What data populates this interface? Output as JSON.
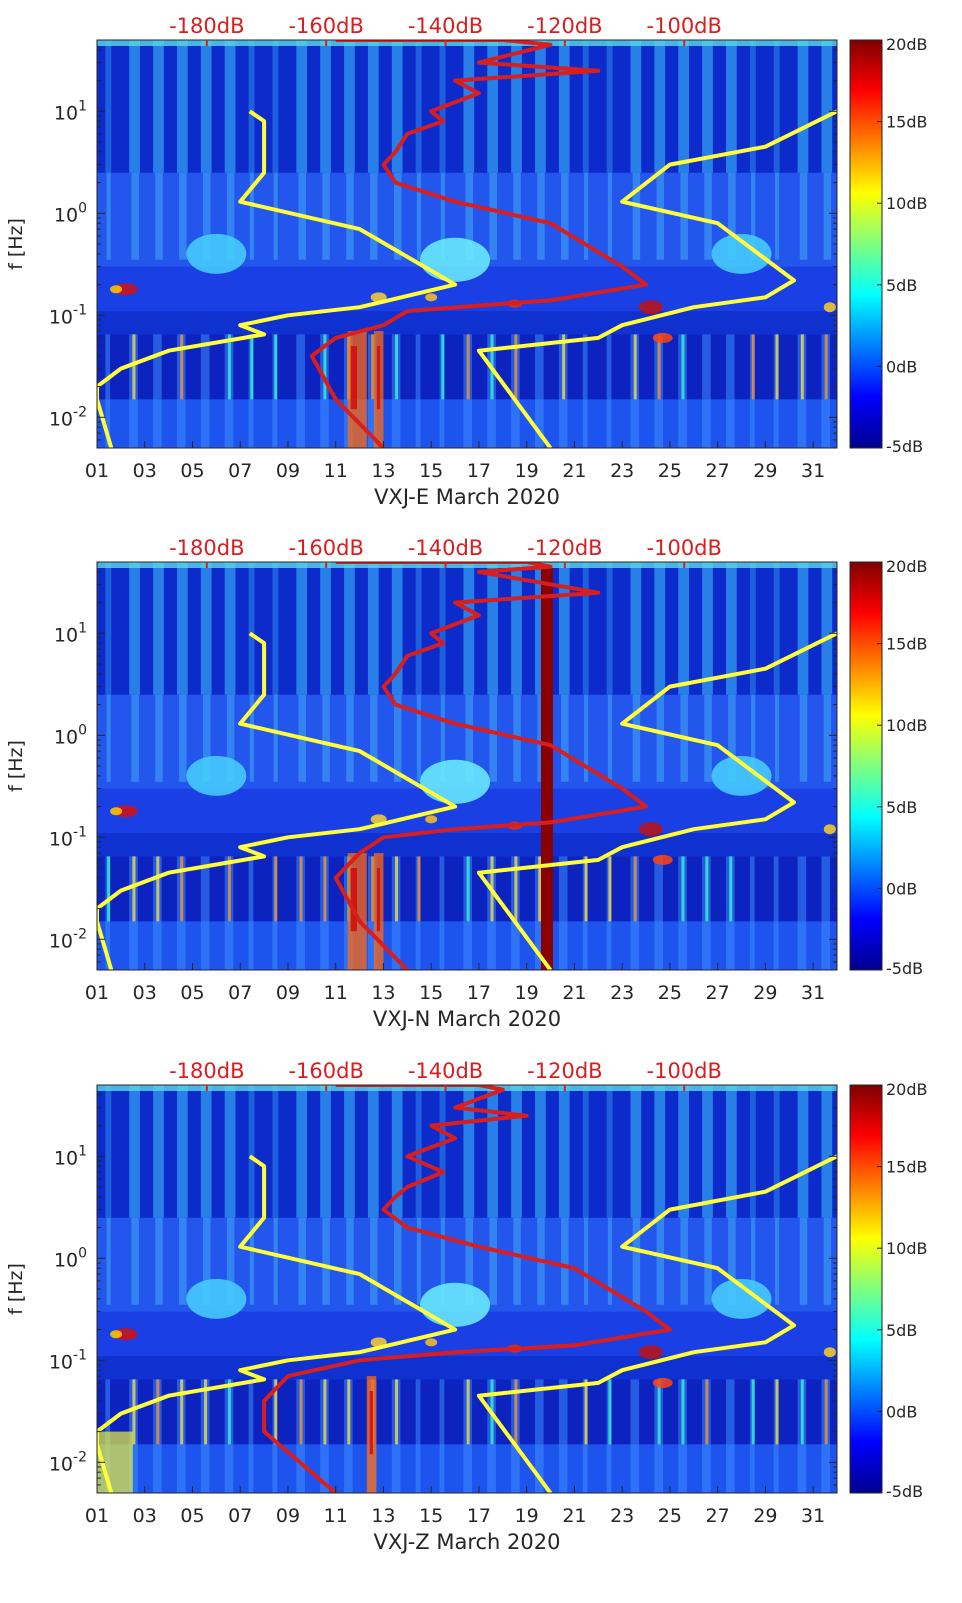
{
  "chart_data": [
    {
      "type": "heatmap",
      "xlabel": "VXJ-E March 2020",
      "ylabel": "f [Hz]",
      "x_ticks": [
        "01",
        "03",
        "05",
        "07",
        "09",
        "11",
        "13",
        "15",
        "17",
        "19",
        "21",
        "23",
        "25",
        "27",
        "29",
        "31"
      ],
      "y_ticks": [
        {
          "v": 0.01,
          "b": "10",
          "e": "-2"
        },
        {
          "v": 0.1,
          "b": "10",
          "e": "-1"
        },
        {
          "v": 1,
          "b": "10",
          "e": "0"
        },
        {
          "v": 10,
          "b": "10",
          "e": "1"
        }
      ],
      "y_scale": "log",
      "ylim": [
        0.005,
        50
      ],
      "xlim": [
        1,
        32
      ],
      "top_axis_ticks": [
        "-180dB",
        "-160dB",
        "-140dB",
        "-120dB",
        "-100dB"
      ],
      "colorbar": {
        "ticks": [
          "20dB",
          "15dB",
          "10dB",
          "5dB",
          "0dB",
          "-5dB"
        ],
        "range": [
          -5,
          20
        ],
        "colormap": "jet"
      },
      "series": [
        {
          "color": "#ffff3a",
          "points": [
            [
              7.4,
              10
            ],
            [
              8,
              8
            ],
            [
              8,
              2.5
            ],
            [
              7,
              1.3
            ],
            [
              12,
              0.7
            ],
            [
              16,
              0.2
            ],
            [
              12,
              0.12
            ],
            [
              9,
              0.1
            ],
            [
              7,
              0.08
            ],
            [
              8,
              0.065
            ],
            [
              4,
              0.045
            ],
            [
              2,
              0.03
            ],
            [
              1,
              0.02
            ],
            [
              1,
              0.015
            ],
            [
              1.6,
              0.005
            ]
          ]
        },
        {
          "color": "#ffff3a",
          "points": [
            [
              32,
              10
            ],
            [
              29,
              4.5
            ],
            [
              25,
              3
            ],
            [
              23,
              1.3
            ],
            [
              27,
              0.8
            ],
            [
              30.2,
              0.22
            ],
            [
              29,
              0.15
            ],
            [
              26,
              0.12
            ],
            [
              23,
              0.08
            ],
            [
              22,
              0.06
            ],
            [
              17,
              0.045
            ],
            [
              20,
              0.005
            ]
          ]
        },
        {
          "color": "#d81e1e",
          "points": [
            [
              11,
              50
            ],
            [
              18,
              50
            ],
            [
              20,
              45
            ],
            [
              17,
              30
            ],
            [
              22,
              25
            ],
            [
              16,
              20
            ],
            [
              17,
              15
            ],
            [
              15,
              10
            ],
            [
              15.5,
              8
            ],
            [
              14,
              6
            ],
            [
              13.5,
              4
            ],
            [
              13,
              3
            ],
            [
              13.5,
              2
            ],
            [
              16,
              1.3
            ],
            [
              20,
              0.8
            ],
            [
              23,
              0.3
            ],
            [
              24,
              0.2
            ],
            [
              20,
              0.14
            ],
            [
              18,
              0.13
            ],
            [
              14,
              0.11
            ],
            [
              13,
              0.08
            ],
            [
              11,
              0.06
            ],
            [
              10,
              0.04
            ],
            [
              11,
              0.015
            ],
            [
              13,
              0.005
            ]
          ]
        }
      ],
      "bright_bands": [
        [
          11.5,
          12.3
        ],
        [
          12.6,
          13
        ]
      ],
      "night_day_stripes": true
    },
    {
      "type": "heatmap",
      "xlabel": "VXJ-N March 2020",
      "ylabel": "f [Hz]",
      "x_ticks": [
        "01",
        "03",
        "05",
        "07",
        "09",
        "11",
        "13",
        "15",
        "17",
        "19",
        "21",
        "23",
        "25",
        "27",
        "29",
        "31"
      ],
      "y_ticks": [
        {
          "v": 0.01,
          "b": "10",
          "e": "-2"
        },
        {
          "v": 0.1,
          "b": "10",
          "e": "-1"
        },
        {
          "v": 1,
          "b": "10",
          "e": "0"
        },
        {
          "v": 10,
          "b": "10",
          "e": "1"
        }
      ],
      "y_scale": "log",
      "ylim": [
        0.005,
        50
      ],
      "xlim": [
        1,
        32
      ],
      "top_axis_ticks": [
        "-180dB",
        "-160dB",
        "-140dB",
        "-120dB",
        "-100dB"
      ],
      "colorbar": {
        "ticks": [
          "20dB",
          "15dB",
          "10dB",
          "5dB",
          "0dB",
          "-5dB"
        ],
        "range": [
          -5,
          20
        ],
        "colormap": "jet"
      },
      "series": [
        {
          "color": "#ffff3a",
          "points": [
            [
              7.4,
              10
            ],
            [
              8,
              8
            ],
            [
              8,
              2.5
            ],
            [
              7,
              1.3
            ],
            [
              12,
              0.7
            ],
            [
              16,
              0.2
            ],
            [
              12,
              0.12
            ],
            [
              9,
              0.1
            ],
            [
              7,
              0.08
            ],
            [
              8,
              0.065
            ],
            [
              4,
              0.045
            ],
            [
              2,
              0.03
            ],
            [
              1,
              0.02
            ],
            [
              1,
              0.015
            ],
            [
              1.6,
              0.005
            ]
          ]
        },
        {
          "color": "#ffff3a",
          "points": [
            [
              32,
              10
            ],
            [
              29,
              4.5
            ],
            [
              25,
              3
            ],
            [
              23,
              1.3
            ],
            [
              27,
              0.8
            ],
            [
              30.2,
              0.22
            ],
            [
              29,
              0.15
            ],
            [
              26,
              0.12
            ],
            [
              23,
              0.08
            ],
            [
              22,
              0.06
            ],
            [
              17,
              0.045
            ],
            [
              20,
              0.005
            ]
          ]
        },
        {
          "color": "#d81e1e",
          "points": [
            [
              11,
              50
            ],
            [
              19,
              50
            ],
            [
              20,
              45
            ],
            [
              17,
              40
            ],
            [
              22,
              25
            ],
            [
              16,
              20
            ],
            [
              17,
              15
            ],
            [
              15,
              10
            ],
            [
              15.5,
              8
            ],
            [
              14,
              6
            ],
            [
              13.5,
              4
            ],
            [
              13,
              3
            ],
            [
              13.5,
              2
            ],
            [
              16,
              1.3
            ],
            [
              20,
              0.8
            ],
            [
              23,
              0.3
            ],
            [
              24,
              0.2
            ],
            [
              20,
              0.14
            ],
            [
              16,
              0.12
            ],
            [
              13,
              0.1
            ],
            [
              12,
              0.07
            ],
            [
              11,
              0.04
            ],
            [
              12,
              0.015
            ],
            [
              14,
              0.005
            ]
          ]
        }
      ],
      "bright_bands": [
        [
          11.5,
          12.3
        ],
        [
          12.6,
          13
        ]
      ],
      "extra_band": [
        19.6,
        20.1
      ],
      "night_day_stripes": true
    },
    {
      "type": "heatmap",
      "xlabel": "VXJ-Z March 2020",
      "ylabel": "f [Hz]",
      "x_ticks": [
        "01",
        "03",
        "05",
        "07",
        "09",
        "11",
        "13",
        "15",
        "17",
        "19",
        "21",
        "23",
        "25",
        "27",
        "29",
        "31"
      ],
      "y_ticks": [
        {
          "v": 0.01,
          "b": "10",
          "e": "-2"
        },
        {
          "v": 0.1,
          "b": "10",
          "e": "-1"
        },
        {
          "v": 1,
          "b": "10",
          "e": "0"
        },
        {
          "v": 10,
          "b": "10",
          "e": "1"
        }
      ],
      "y_scale": "log",
      "ylim": [
        0.005,
        50
      ],
      "xlim": [
        1,
        32
      ],
      "top_axis_ticks": [
        "-180dB",
        "-160dB",
        "-140dB",
        "-120dB",
        "-100dB"
      ],
      "colorbar": {
        "ticks": [
          "20dB",
          "15dB",
          "10dB",
          "5dB",
          "0dB",
          "-5dB"
        ],
        "range": [
          -5,
          20
        ],
        "colormap": "jet"
      },
      "series": [
        {
          "color": "#ffff3a",
          "points": [
            [
              7.4,
              10
            ],
            [
              8,
              8
            ],
            [
              8,
              2.5
            ],
            [
              7,
              1.3
            ],
            [
              12,
              0.7
            ],
            [
              16,
              0.2
            ],
            [
              12,
              0.12
            ],
            [
              9,
              0.1
            ],
            [
              7,
              0.08
            ],
            [
              8,
              0.065
            ],
            [
              4,
              0.045
            ],
            [
              2,
              0.03
            ],
            [
              1,
              0.02
            ],
            [
              1,
              0.015
            ],
            [
              1.6,
              0.005
            ]
          ]
        },
        {
          "color": "#ffff3a",
          "points": [
            [
              32,
              10
            ],
            [
              29,
              4.5
            ],
            [
              25,
              3
            ],
            [
              23,
              1.3
            ],
            [
              27,
              0.8
            ],
            [
              30.2,
              0.22
            ],
            [
              29,
              0.15
            ],
            [
              26,
              0.12
            ],
            [
              23,
              0.08
            ],
            [
              22,
              0.06
            ],
            [
              17,
              0.045
            ],
            [
              20,
              0.005
            ]
          ]
        },
        {
          "color": "#d81e1e",
          "points": [
            [
              11,
              50
            ],
            [
              17,
              50
            ],
            [
              18,
              45
            ],
            [
              16,
              30
            ],
            [
              19,
              25
            ],
            [
              15,
              20
            ],
            [
              16,
              15
            ],
            [
              14,
              10
            ],
            [
              15.5,
              7
            ],
            [
              14,
              5
            ],
            [
              13.5,
              4
            ],
            [
              13,
              3
            ],
            [
              14,
              2
            ],
            [
              17,
              1.3
            ],
            [
              21,
              0.8
            ],
            [
              24,
              0.3
            ],
            [
              25,
              0.2
            ],
            [
              21,
              0.14
            ],
            [
              16,
              0.12
            ],
            [
              12,
              0.1
            ],
            [
              9,
              0.07
            ],
            [
              8,
              0.04
            ],
            [
              8,
              0.02
            ],
            [
              11,
              0.005
            ]
          ]
        }
      ],
      "bright_bands": [
        [
          12.3,
          12.7
        ]
      ],
      "bottom_bright_band": [
        1,
        2.5
      ],
      "night_day_stripes": true
    }
  ]
}
